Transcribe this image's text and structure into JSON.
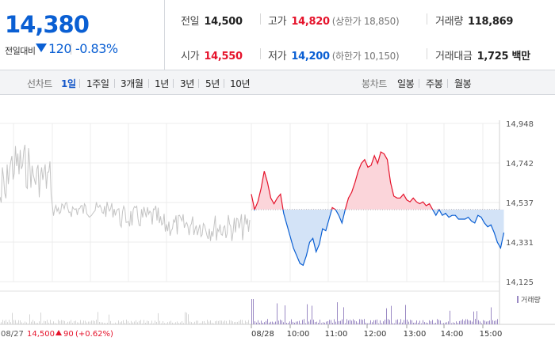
{
  "header": {
    "price": "14,380",
    "change_label": "전일대비",
    "change_value": "120",
    "change_rate": "-0.83%",
    "prev_close_label": "전일",
    "prev_close": "14,500",
    "high_label": "고가",
    "high": "14,820",
    "upper_limit": "(상한가 18,850)",
    "volume_label": "거래량",
    "volume": "118,869",
    "open_label": "시가",
    "open": "14,550",
    "low_label": "저가",
    "low": "14,200",
    "lower_limit": "(하한가 10,150)",
    "trade_value_label": "거래대금",
    "trade_value": "1,725 백만"
  },
  "period_bar": {
    "line_chart_label": "선차트",
    "periods": [
      "1일",
      "1주일",
      "3개월",
      "1년",
      "3년",
      "5년",
      "10년"
    ],
    "active_period": "1일",
    "candle_chart_label": "봉차트",
    "candles": [
      "일봉",
      "주봉",
      "월봉"
    ]
  },
  "colors": {
    "up": "#e5132b",
    "down": "#0a5fd3",
    "prev_day": "#c4c4c4",
    "volume": "#9b8ac4"
  },
  "chart_data": {
    "type": "line",
    "y_ticks": [
      "14,948",
      "14,742",
      "14,537",
      "14,331",
      "14,125"
    ],
    "ylim": [
      14125,
      14948
    ],
    "reference_price": 14500,
    "x_ticks": [
      "08/28",
      "10:00",
      "11:00",
      "12:00",
      "13:00",
      "14:00",
      "15:00"
    ],
    "volume_legend": "거래량",
    "prev_day_footer": {
      "date": "08/27",
      "price": "14,500",
      "change": "90",
      "rate": "(+0.62%)"
    },
    "series": [
      {
        "x": [
          0,
          5,
          10,
          15,
          20,
          25,
          30,
          35,
          40,
          45,
          50,
          55,
          60,
          65,
          70,
          75,
          80,
          85,
          90,
          95,
          100,
          105,
          110,
          115,
          120,
          125,
          130,
          135,
          140,
          145,
          150,
          155,
          160,
          165,
          170,
          175,
          180,
          185,
          190,
          195,
          200,
          205,
          210,
          215,
          220,
          225,
          230,
          235,
          240,
          245,
          250,
          255,
          260,
          265,
          270,
          275,
          280,
          285,
          290,
          295,
          300,
          305,
          310,
          315,
          320,
          325,
          330,
          335,
          340,
          345,
          350,
          355,
          360,
          365,
          370,
          375,
          380,
          385,
          390
        ],
        "values": [
          14580,
          14500,
          14540,
          14610,
          14700,
          14640,
          14560,
          14530,
          14560,
          14580,
          14480,
          14420,
          14360,
          14300,
          14260,
          14220,
          14210,
          14260,
          14330,
          14350,
          14280,
          14320,
          14400,
          14390,
          14450,
          14510,
          14500,
          14470,
          14430,
          14500,
          14560,
          14590,
          14640,
          14700,
          14740,
          14760,
          14720,
          14730,
          14780,
          14740,
          14800,
          14790,
          14760,
          14640,
          14570,
          14560,
          14560,
          14580,
          14550,
          14540,
          14560,
          14540,
          14530,
          14540,
          14520,
          14530,
          14500,
          14470,
          14500,
          14470,
          14480,
          14460,
          14470,
          14470,
          14450,
          14450,
          14450,
          14460,
          14440,
          14430,
          14470,
          14460,
          14430,
          14410,
          14420,
          14380,
          14330,
          14300,
          14380
        ]
      }
    ],
    "volume_bars_note": ""
  }
}
